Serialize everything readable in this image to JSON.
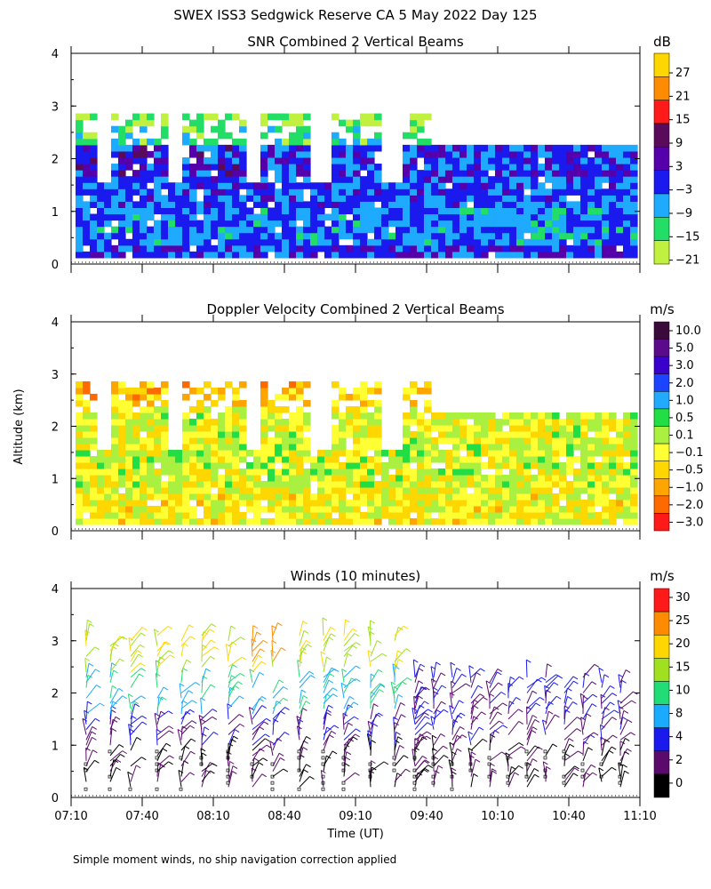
{
  "figure_title": "SWEX ISS3 Sedgwick Reserve CA   5 May 2022 Day 125",
  "ylabel": "Altitude (km)",
  "xlabel": "Time (UT)",
  "footnote": "Simple moment winds, no ship navigation correction applied",
  "chart_data": [
    {
      "type": "heatmap",
      "title": "SNR Combined 2 Vertical Beams",
      "colorbar_unit": "dB",
      "xlabel": "Time (UT)",
      "ylabel": "Altitude (km)",
      "x_range": [
        "07:10",
        "11:10"
      ],
      "ylim": [
        0,
        4
      ],
      "y_ticks": [
        "0",
        "1",
        "2",
        "3",
        "4"
      ],
      "levels": [
        "27",
        "21",
        "15",
        "9",
        "3",
        "−3",
        "−9",
        "−15",
        "−21"
      ],
      "colors": [
        "#ffd700",
        "#ff8c00",
        "#ff1a1a",
        "#5a0a5a",
        "#5500aa",
        "#1a1aee",
        "#1eaaff",
        "#22dd66",
        "#c0f040"
      ]
    },
    {
      "type": "heatmap",
      "title": "Doppler Velocity Combined 2 Vertical Beams",
      "colorbar_unit": "m/s",
      "xlabel": "Time (UT)",
      "ylabel": "Altitude (km)",
      "x_range": [
        "07:10",
        "11:10"
      ],
      "ylim": [
        0,
        4
      ],
      "y_ticks": [
        "0",
        "1",
        "2",
        "3",
        "4"
      ],
      "levels": [
        "10.0",
        "5.0",
        "3.0",
        "2.0",
        "1.0",
        "0.5",
        "0.1",
        "−0.1",
        "−0.5",
        "−1.0",
        "−2.0",
        "−3.0"
      ],
      "colors": [
        "#3a0a3a",
        "#5a0a8a",
        "#3a00cc",
        "#1a44ff",
        "#22aaff",
        "#22dd44",
        "#aaf040",
        "#ffff33",
        "#ffd700",
        "#ffa500",
        "#ff6a00",
        "#ff1a1a"
      ]
    },
    {
      "type": "scatter",
      "title": "Winds (10 minutes)",
      "colorbar_unit": "m/s",
      "xlabel": "Time (UT)",
      "ylabel": "Altitude (km)",
      "x_ticks": [
        "07:10",
        "07:40",
        "08:10",
        "08:40",
        "09:10",
        "09:40",
        "10:10",
        "10:40",
        "11:10"
      ],
      "ylim": [
        0,
        4
      ],
      "y_ticks": [
        "0",
        "1",
        "2",
        "3",
        "4"
      ],
      "levels": [
        "30",
        "25",
        "20",
        "15",
        "10",
        "8",
        "4",
        "2",
        "0"
      ],
      "colors": [
        "#ff1a1a",
        "#ff8c00",
        "#ffd700",
        "#a0e020",
        "#22dd77",
        "#1aaaff",
        "#1a1aee",
        "#5a0a6a",
        "#000000"
      ]
    }
  ]
}
